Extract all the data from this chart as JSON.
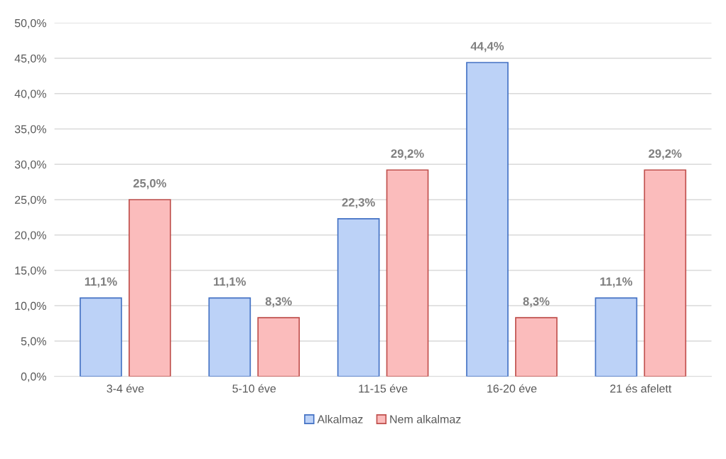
{
  "chart_data": {
    "type": "bar",
    "categories": [
      "3-4 éve",
      "5-10 éve",
      "11-15 éve",
      "16-20 éve",
      "21 és afelett"
    ],
    "series": [
      {
        "name": "Alkalmaz",
        "color": "#bcd2f7",
        "values": [
          11.1,
          11.1,
          22.3,
          44.4,
          11.1
        ],
        "value_labels": [
          "11,1%",
          "11,1%",
          "22,3%",
          "44,4%",
          "11,1%"
        ]
      },
      {
        "name": "Nem alkalmaz",
        "color": "#fbbcbc",
        "values": [
          25.0,
          8.3,
          29.2,
          8.3,
          29.2
        ],
        "value_labels": [
          "25,0%",
          "8,3%",
          "29,2%",
          "8,3%",
          "29,2%"
        ]
      }
    ],
    "ylim": [
      0,
      50
    ],
    "yticks": [
      {
        "value": 0,
        "label": "0,0%"
      },
      {
        "value": 5,
        "label": "5,0%"
      },
      {
        "value": 10,
        "label": "10,0%"
      },
      {
        "value": 15,
        "label": "15,0%"
      },
      {
        "value": 20,
        "label": "20,0%"
      },
      {
        "value": 25,
        "label": "25,0%"
      },
      {
        "value": 30,
        "label": "30,0%"
      },
      {
        "value": 35,
        "label": "35,0%"
      },
      {
        "value": 40,
        "label": "40,0%"
      },
      {
        "value": 45,
        "label": "45,0%"
      },
      {
        "value": 50,
        "label": "50,0%"
      }
    ],
    "grid": "y",
    "legend": "bottom"
  }
}
